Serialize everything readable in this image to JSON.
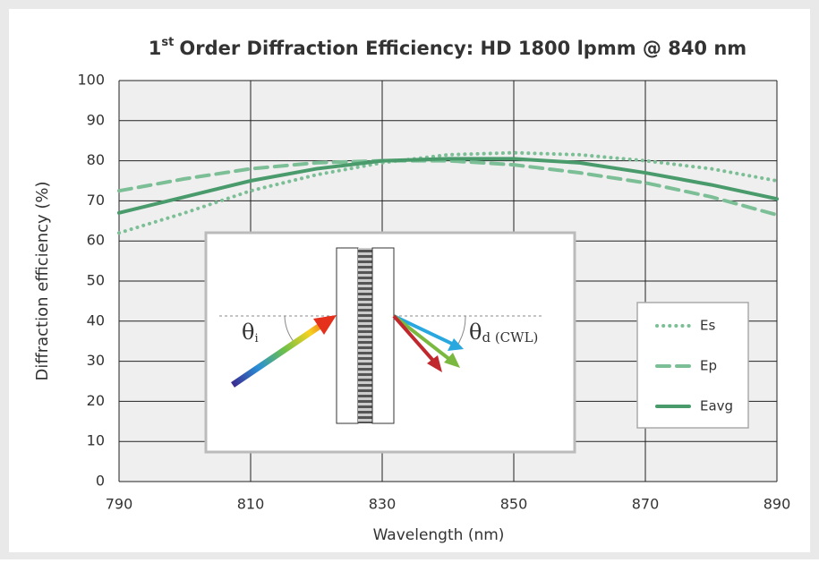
{
  "chart_data": {
    "type": "line",
    "title_prefix": "1",
    "title_superscript": "st",
    "title": "Order Diffraction Efficiency: HD 1800 lpmm @ 840 nm",
    "x_label": "Wavelength (nm)",
    "y_label": "Diffraction efficiency (%)",
    "x": [
      790,
      800,
      810,
      820,
      830,
      840,
      850,
      860,
      870,
      880,
      890
    ],
    "series": [
      {
        "name": "Es",
        "color": "#7cbf96",
        "dash": "dotted",
        "values": [
          62,
          67,
          72.5,
          76.5,
          79.5,
          81.5,
          82,
          81.5,
          80,
          78,
          75
        ]
      },
      {
        "name": "Ep",
        "color": "#7cbf96",
        "dash": "dashed",
        "values": [
          72.5,
          75.5,
          78,
          79.5,
          80,
          80,
          79,
          77,
          74.5,
          71,
          66.5
        ]
      },
      {
        "name": "Eavg",
        "color": "#4a9b6c",
        "dash": "solid",
        "values": [
          67,
          71,
          75,
          78,
          80,
          80.5,
          80.5,
          79.5,
          77,
          74,
          70.5
        ]
      }
    ],
    "xlim": [
      790,
      890
    ],
    "ylim": [
      0,
      100
    ],
    "xticks": [
      790,
      810,
      830,
      850,
      870,
      890
    ],
    "yticks": [
      0,
      10,
      20,
      30,
      40,
      50,
      60,
      70,
      80,
      90,
      100
    ],
    "grid": true,
    "legend": "right",
    "annotations": [
      "θ",
      "i",
      "θ",
      "d (CWL)"
    ]
  }
}
